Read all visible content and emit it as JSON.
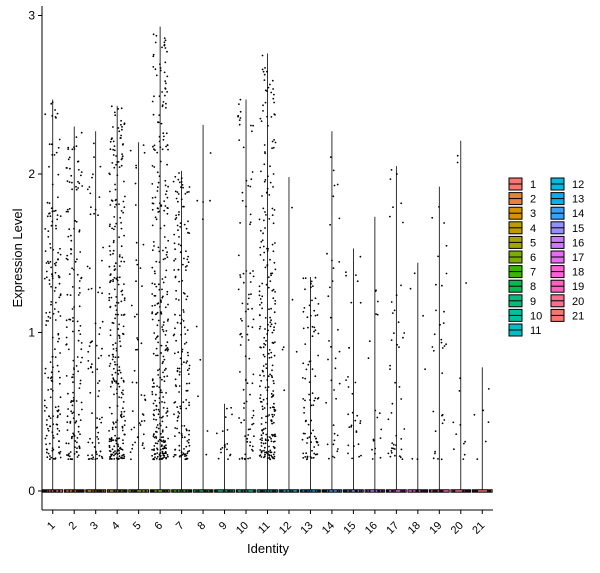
{
  "chart_data": {
    "type": "violin",
    "title": "",
    "xlabel": "Identity",
    "ylabel": "Expression Level",
    "ylim": [
      -0.12,
      3.06
    ],
    "yticks": [
      0,
      1,
      2,
      3
    ],
    "grid": false,
    "legend_position": "right",
    "categories": [
      "1",
      "2",
      "3",
      "4",
      "5",
      "6",
      "7",
      "8",
      "9",
      "10",
      "11",
      "12",
      "13",
      "14",
      "15",
      "16",
      "17",
      "18",
      "19",
      "20",
      "21"
    ],
    "colors": [
      "#F8766D",
      "#EA8331",
      "#D89000",
      "#C09B00",
      "#A3A500",
      "#7CAE00",
      "#39B600",
      "#00BB4E",
      "#00BF7D",
      "#00C1A3",
      "#00BFC4",
      "#00BAE0",
      "#00B0F6",
      "#35A2FF",
      "#9590FF",
      "#C77CFF",
      "#E76BF3",
      "#FA62DB",
      "#FF62BC",
      "#FF6C91",
      "#F8766D"
    ],
    "series": [
      {
        "name": "1",
        "max": 2.47,
        "density": 0.55
      },
      {
        "name": "2",
        "max": 2.3,
        "density": 0.5
      },
      {
        "name": "3",
        "max": 2.27,
        "density": 0.25
      },
      {
        "name": "4",
        "max": 2.43,
        "density": 0.9
      },
      {
        "name": "5",
        "max": 2.2,
        "density": 0.15
      },
      {
        "name": "6",
        "max": 2.93,
        "density": 1.0
      },
      {
        "name": "7",
        "max": 2.02,
        "density": 0.55
      },
      {
        "name": "8",
        "max": 2.31,
        "density": 0.03
      },
      {
        "name": "9",
        "max": 0.55,
        "density": 0.06
      },
      {
        "name": "10",
        "max": 2.47,
        "density": 0.3
      },
      {
        "name": "11",
        "max": 2.76,
        "density": 0.85
      },
      {
        "name": "12",
        "max": 1.98,
        "density": 0.02
      },
      {
        "name": "13",
        "max": 1.35,
        "density": 0.28
      },
      {
        "name": "14",
        "max": 2.27,
        "density": 0.12
      },
      {
        "name": "15",
        "max": 1.53,
        "density": 0.1
      },
      {
        "name": "16",
        "max": 1.73,
        "density": 0.06
      },
      {
        "name": "17",
        "max": 2.05,
        "density": 0.14
      },
      {
        "name": "18",
        "max": 1.44,
        "density": 0.02
      },
      {
        "name": "19",
        "max": 1.92,
        "density": 0.1
      },
      {
        "name": "20",
        "max": 2.21,
        "density": 0.04
      },
      {
        "name": "21",
        "max": 0.78,
        "density": 0.02
      }
    ]
  }
}
